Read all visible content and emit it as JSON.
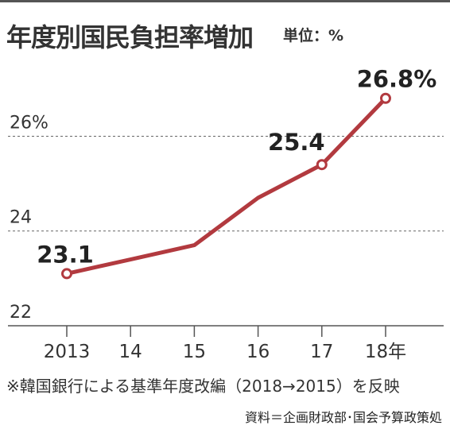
{
  "header": {
    "title": "年度別国民負担率増加",
    "unit": "単位：%"
  },
  "chart_data": {
    "type": "line",
    "categories": [
      "2013",
      "14",
      "15",
      "16",
      "17",
      "18年"
    ],
    "series": [
      {
        "values": [
          23.1,
          23.4,
          23.7,
          24.7,
          25.4,
          26.8
        ]
      }
    ],
    "y_ticks": [
      {
        "value": 22,
        "label": "22"
      },
      {
        "value": 24,
        "label": "24"
      },
      {
        "value": 26,
        "label": "26%"
      }
    ],
    "ylim": [
      22,
      27.5
    ],
    "point_labels": [
      {
        "index": 0,
        "text": "23.1"
      },
      {
        "index": 4,
        "text": "25.4"
      },
      {
        "index": 5,
        "text": "26.8%"
      }
    ],
    "line_color": "#b23a3f",
    "grid": true
  },
  "footer": {
    "note": "※韓国銀行による基準年度改編（2018→2015）を反映",
    "source": "資料＝企画財政部･国会予算政策処"
  }
}
